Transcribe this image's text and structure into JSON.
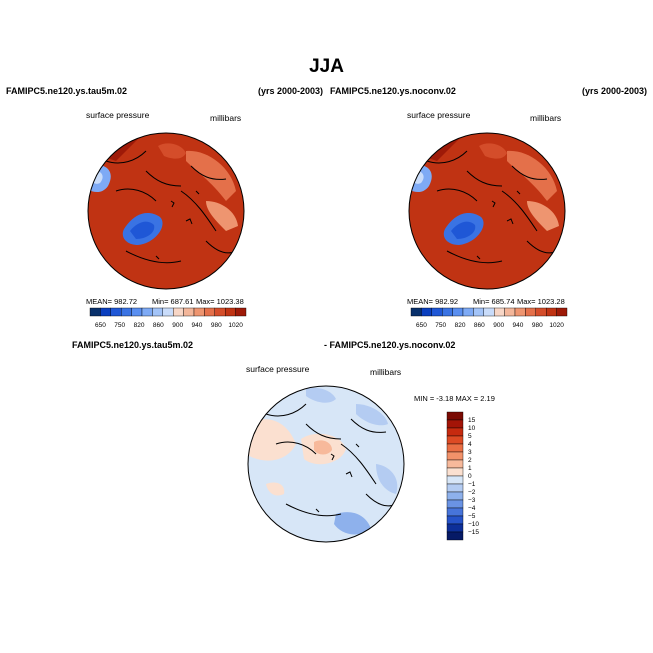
{
  "page": {
    "title": "JJA"
  },
  "left_panel": {
    "case": "FAMIPC5.ne120.ys.tau5m.02",
    "years": "(yrs 2000-2003)",
    "field": "surface pressure",
    "units": "millibars",
    "stats": {
      "mean": "MEAN= 982.72",
      "min": "Min= 687.61",
      "max": "Max= 1023.38"
    }
  },
  "right_panel": {
    "case": "FAMIPC5.ne120.ys.noconv.02",
    "years": "(yrs 2000-2003)",
    "field": "surface pressure",
    "units": "millibars",
    "stats": {
      "mean": "MEAN= 982.92",
      "min": "Min= 685.74",
      "max": "Max= 1023.28"
    }
  },
  "diff_panel": {
    "case_a": "FAMIPC5.ne120.ys.tau5m.02",
    "case_b": "- FAMIPC5.ne120.ys.noconv.02",
    "field": "surface pressure",
    "units": "millibars",
    "minmax_text": "MIN =   -3.18  MAX =    2.19"
  },
  "chart_data": [
    {
      "type": "heatmap",
      "projection": "north polar stereographic",
      "title": "FAMIPC5.ne120.ys.tau5m.02",
      "subtitle": "surface pressure",
      "units": "millibars",
      "years": "(yrs 2000-2003)",
      "mean": 982.72,
      "min": 687.61,
      "max": 1023.38,
      "colorbar_levels": [
        650,
        700,
        750,
        800,
        820,
        840,
        860,
        880,
        900,
        920,
        940,
        960,
        980,
        1000,
        1020
      ],
      "colorbar_tick_labels": [
        "650",
        "750",
        "820",
        "860",
        "900",
        "940",
        "980",
        "1020"
      ],
      "colorbar_colors": [
        "#08306b",
        "#0a3fbf",
        "#1f57d6",
        "#3a73e3",
        "#5a8ff0",
        "#7eaaf5",
        "#a3c4f8",
        "#c9dcfa",
        "#f7d6c6",
        "#f3b69a",
        "#ee9570",
        "#e4704a",
        "#d44d2a",
        "#c03313",
        "#9e1a08"
      ]
    },
    {
      "type": "heatmap",
      "projection": "north polar stereographic",
      "title": "FAMIPC5.ne120.ys.noconv.02",
      "subtitle": "surface pressure",
      "units": "millibars",
      "years": "(yrs 2000-2003)",
      "mean": 982.92,
      "min": 685.74,
      "max": 1023.28,
      "colorbar_levels": [
        650,
        700,
        750,
        800,
        820,
        840,
        860,
        880,
        900,
        920,
        940,
        960,
        980,
        1000,
        1020
      ],
      "colorbar_tick_labels": [
        "650",
        "750",
        "820",
        "860",
        "900",
        "940",
        "980",
        "1020"
      ],
      "colorbar_colors": [
        "#08306b",
        "#0a3fbf",
        "#1f57d6",
        "#3a73e3",
        "#5a8ff0",
        "#7eaaf5",
        "#a3c4f8",
        "#c9dcfa",
        "#f7d6c6",
        "#f3b69a",
        "#ee9570",
        "#e4704a",
        "#d44d2a",
        "#c03313",
        "#9e1a08"
      ]
    },
    {
      "type": "heatmap",
      "projection": "north polar stereographic",
      "title": "FAMIPC5.ne120.ys.tau5m.02 - FAMIPC5.ne120.ys.noconv.02",
      "subtitle": "surface pressure",
      "units": "millibars",
      "min": -3.18,
      "max": 2.19,
      "colorbar_levels": [
        15,
        10,
        5,
        4,
        3,
        2,
        1,
        0,
        -1,
        -2,
        -3,
        -4,
        -5,
        -10,
        -15
      ],
      "colorbar_tick_labels": [
        "15",
        "10",
        "5",
        "4",
        "3",
        "2",
        "1",
        "0",
        "−1",
        "−2",
        "−3",
        "−4",
        "−5",
        "−10",
        "−15"
      ],
      "colorbar_colors": [
        "#7a0a03",
        "#a31407",
        "#c62a0f",
        "#dd4a24",
        "#ea6e44",
        "#f2926a",
        "#f7b99b",
        "#fbe0d0",
        "#d7e6f7",
        "#b4ccf2",
        "#8eb1ec",
        "#6a93e4",
        "#4774da",
        "#2653c9",
        "#0d2f99",
        "#061a66"
      ]
    }
  ]
}
